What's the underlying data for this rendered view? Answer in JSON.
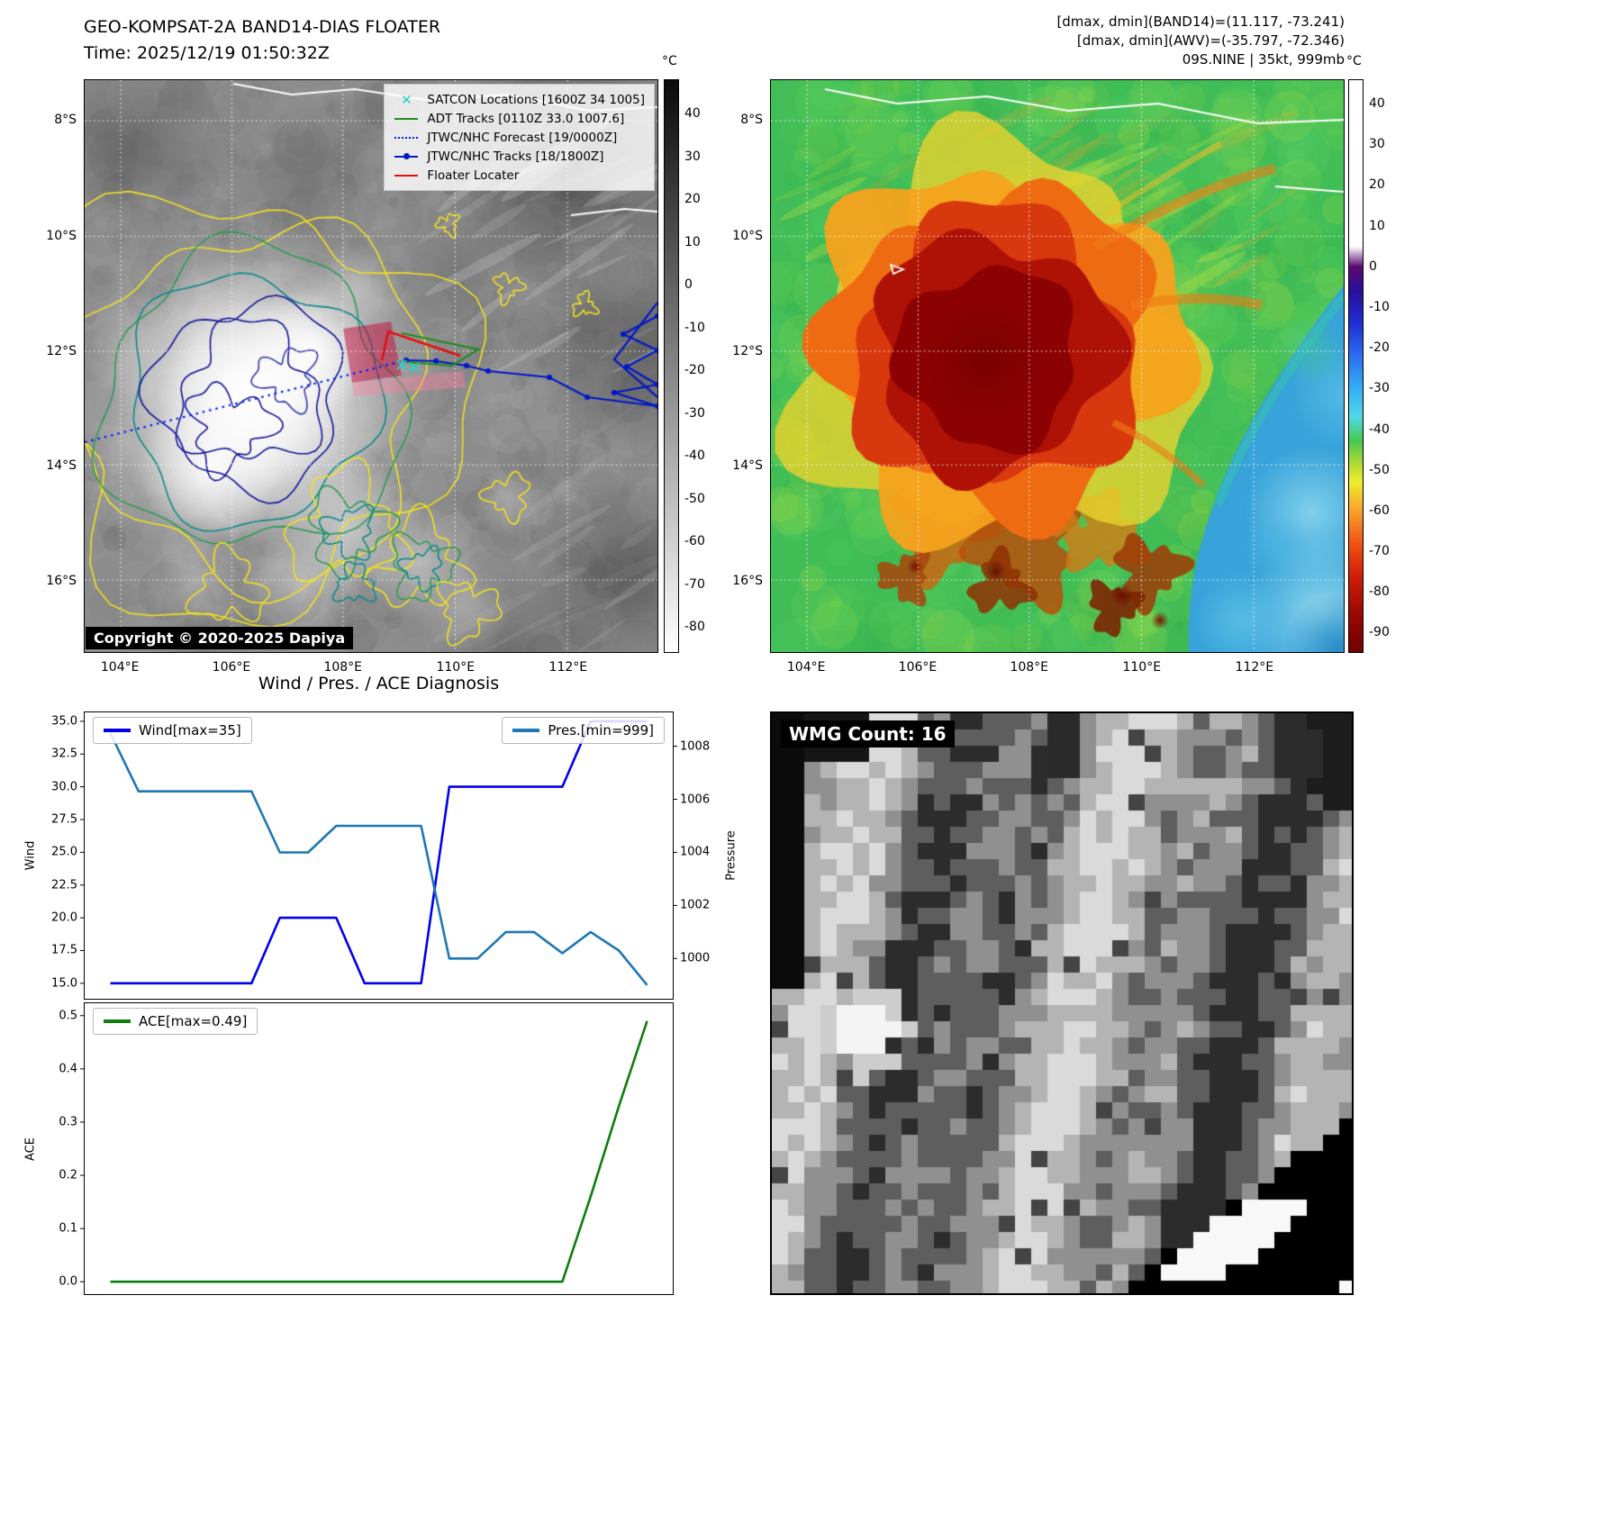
{
  "panel_band14": {
    "title": "GEO-KOMPSAT-2A BAND14-DIAS FLOATER",
    "time": "Time: 2025/12/19 01:50:32Z",
    "copyright": "Copyright © 2020-2025 Dapiya",
    "x_ticks": [
      "104°E",
      "106°E",
      "108°E",
      "110°E",
      "112°E"
    ],
    "y_ticks": [
      "8°S",
      "10°S",
      "12°S",
      "14°S",
      "16°S"
    ],
    "colorbar": {
      "unit": "°C",
      "ticks": [
        "40",
        "30",
        "20",
        "10",
        "0",
        "-10",
        "-20",
        "-30",
        "-40",
        "-50",
        "-60",
        "-70",
        "-80"
      ],
      "range": [
        48,
        -86
      ],
      "stops": [
        {
          "v": 48,
          "c": "#0a0a0a"
        },
        {
          "v": -86,
          "c": "#ffffff"
        }
      ]
    },
    "legend": [
      {
        "label": "SATCON Locations [1600Z 34 1005]",
        "style": "x",
        "color": "#27cfc3",
        "icon": "✕"
      },
      {
        "label": "ADT Tracks [0110Z 33.0 1007.6]",
        "style": "line",
        "color": "#1f8c1f"
      },
      {
        "label": "JTWC/NHC Forecast [19/0000Z]",
        "style": "dotted",
        "color": "#0018ff"
      },
      {
        "label": "JTWC/NHC Tracks [18/1800Z]",
        "style": "line-marker",
        "color": "#0018c8"
      },
      {
        "label": "Floater Locater",
        "style": "line",
        "color": "#e80c0c"
      }
    ]
  },
  "panel_awv": {
    "header": [
      "[dmax, dmin](BAND14)=(11.117, -73.241)",
      "[dmax, dmin](AWV)=(-35.797, -72.346)",
      "09S.NINE | 35kt, 999mb"
    ],
    "x_ticks": [
      "104°E",
      "106°E",
      "108°E",
      "110°E",
      "112°E"
    ],
    "y_ticks": [
      "8°S",
      "10°S",
      "12°S",
      "14°S",
      "16°S"
    ],
    "colorbar": {
      "unit": "°C",
      "ticks": [
        "40",
        "30",
        "20",
        "10",
        "0",
        "-10",
        "-20",
        "-30",
        "-40",
        "-50",
        "-60",
        "-70",
        "-80",
        "-90"
      ],
      "range": [
        46,
        -95
      ],
      "stops": [
        {
          "v": 46,
          "c": "#ffffff"
        },
        {
          "v": 5,
          "c": "#fefefe"
        },
        {
          "v": 0,
          "c": "#5b0b6e"
        },
        {
          "v": -6,
          "c": "#2a0d9e"
        },
        {
          "v": -14,
          "c": "#1f2fd4"
        },
        {
          "v": -22,
          "c": "#2a6ef0"
        },
        {
          "v": -30,
          "c": "#35aef5"
        },
        {
          "v": -37,
          "c": "#4fd8e8"
        },
        {
          "v": -43,
          "c": "#46c94f"
        },
        {
          "v": -49,
          "c": "#b5dc32"
        },
        {
          "v": -53,
          "c": "#eeee2e"
        },
        {
          "v": -60,
          "c": "#f9a22b"
        },
        {
          "v": -68,
          "c": "#ef5415"
        },
        {
          "v": -76,
          "c": "#d41f0a"
        },
        {
          "v": -85,
          "c": "#9b0a02"
        },
        {
          "v": -95,
          "c": "#6f0000"
        }
      ]
    }
  },
  "diagnosis": {
    "title": "Wind / Pres. / ACE Diagnosis",
    "wind_axis_label": "Wind",
    "pressure_axis_label": "Pressure",
    "ace_axis_label": "ACE",
    "wind_ticks": [
      "35.0",
      "32.5",
      "30.0",
      "27.5",
      "25.0",
      "22.5",
      "20.0",
      "17.5",
      "15.0"
    ],
    "pressure_ticks": [
      "1008",
      "1006",
      "1004",
      "1002",
      "1000"
    ],
    "ace_ticks": [
      "0.5",
      "0.4",
      "0.3",
      "0.2",
      "0.1",
      "0.0"
    ],
    "legend_wind": "Wind[max=35]",
    "legend_pres": "Pres.[min=999]",
    "legend_ace": "ACE[max=0.49]",
    "wind_color": "#0000ee",
    "pres_color": "#1f77b4",
    "ace_color": "#0f7d0f"
  },
  "wmg": {
    "label": "WMG Count: 16"
  },
  "chart_data": [
    {
      "type": "line",
      "title": "Wind / Pres. / ACE Diagnosis",
      "x": [
        0,
        1,
        2,
        3,
        4,
        5,
        6,
        7,
        8,
        9,
        10,
        11,
        12,
        13,
        14,
        15,
        16,
        17,
        18,
        19
      ],
      "series": [
        {
          "name": "Wind[max=35]",
          "axis": "left",
          "color": "#0000ee",
          "values": [
            15,
            15,
            15,
            15,
            15,
            15,
            20,
            20,
            20,
            15,
            15,
            15,
            30,
            30,
            30,
            30,
            30,
            35,
            35,
            35
          ]
        },
        {
          "name": "Pres.[min=999]",
          "axis": "right",
          "color": "#1f77b4",
          "values": [
            1008.5,
            1006.3,
            1006.3,
            1006.3,
            1006.3,
            1006.3,
            1004,
            1004,
            1005,
            1005,
            1005,
            1005,
            1000,
            1000,
            1001,
            1001,
            1000.2,
            1001,
            1000.3,
            999
          ]
        }
      ],
      "ylabel": "Wind",
      "y2label": "Pressure",
      "ylim": [
        13.75,
        35.75
      ],
      "y2lim": [
        998.45,
        1009.31
      ],
      "y_ticks": [
        35,
        32.5,
        30,
        27.5,
        25,
        22.5,
        20,
        17.5,
        15
      ],
      "y2_ticks": [
        1008,
        1006,
        1004,
        1002,
        1000
      ],
      "grid": false,
      "legend_positions": [
        "upper left",
        "upper right"
      ]
    },
    {
      "type": "line",
      "title": "ACE",
      "x": [
        0,
        1,
        2,
        3,
        4,
        5,
        6,
        7,
        8,
        9,
        10,
        11,
        12,
        13,
        14,
        15,
        16,
        17,
        18,
        19
      ],
      "series": [
        {
          "name": "ACE[max=0.49]",
          "axis": "left",
          "color": "#0f7d0f",
          "values": [
            0,
            0,
            0,
            0,
            0,
            0,
            0,
            0,
            0,
            0,
            0,
            0,
            0,
            0,
            0,
            0,
            0,
            0.16,
            0.33,
            0.49
          ]
        }
      ],
      "ylabel": "ACE",
      "ylim": [
        -0.025,
        0.525
      ],
      "y_ticks": [
        0.5,
        0.4,
        0.3,
        0.2,
        0.1,
        0
      ],
      "grid": false,
      "legend_position": "upper left"
    }
  ]
}
